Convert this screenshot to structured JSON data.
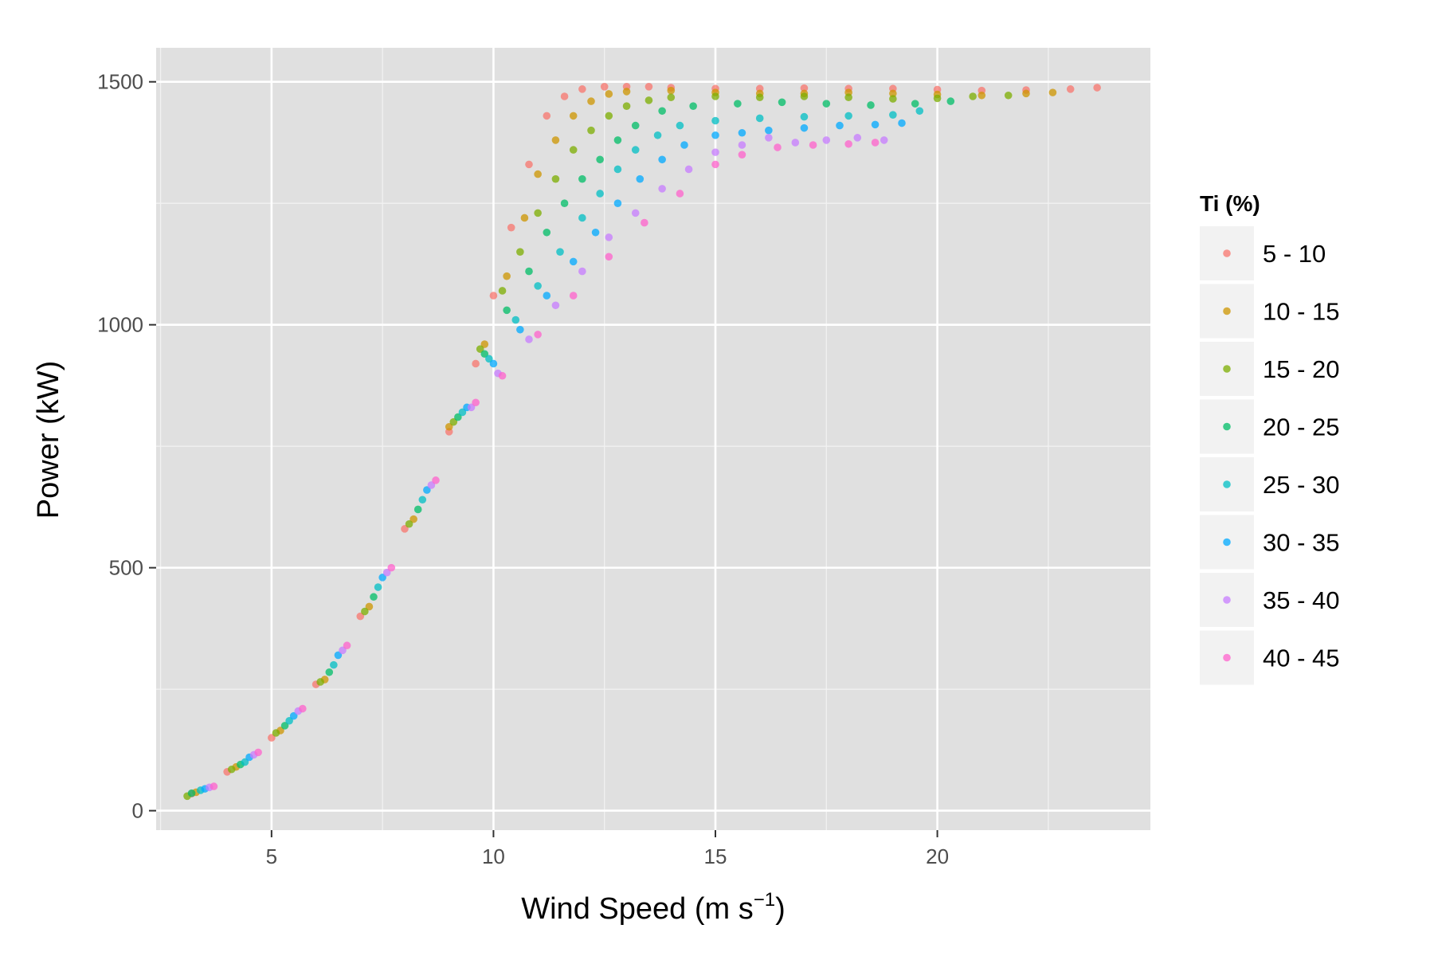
{
  "chart_data": {
    "type": "scatter",
    "title": "",
    "xlabel": "Wind Speed (m s",
    "xlabel_superscript": "−1",
    "xlabel_suffix": ")",
    "ylabel": "Power (kW)",
    "xlim": [
      2.4,
      24.8
    ],
    "ylim": [
      -40,
      1570
    ],
    "x_ticks": [
      5,
      10,
      15,
      20
    ],
    "y_ticks": [
      0,
      500,
      1000,
      1500
    ],
    "x_tick_labels": [
      "5",
      "10",
      "15",
      "20"
    ],
    "y_tick_labels": [
      "0",
      "500",
      "1000",
      "1500"
    ],
    "grid": true,
    "panel_background": "#e0e0e0",
    "grid_color": "#ffffff",
    "legend": {
      "title": "Ti (%)",
      "position": "right",
      "entries": [
        {
          "label": "5 - 10",
          "color": "#F8766D"
        },
        {
          "label": "10 - 15",
          "color": "#CD9600"
        },
        {
          "label": "15 - 20",
          "color": "#7CAE00"
        },
        {
          "label": "20 - 25",
          "color": "#00BE67"
        },
        {
          "label": "25 - 30",
          "color": "#00BFC4"
        },
        {
          "label": "30 - 35",
          "color": "#00A9FF"
        },
        {
          "label": "35 - 40",
          "color": "#C77CFF"
        },
        {
          "label": "40 - 45",
          "color": "#FF61CC"
        }
      ]
    },
    "series": [
      {
        "name": "5 - 10",
        "x": [
          3.2,
          4.0,
          5.0,
          6.0,
          7.0,
          8.0,
          9.0,
          9.6,
          10.0,
          10.4,
          10.8,
          11.2,
          11.6,
          12.0,
          12.5,
          13.0,
          13.5,
          14.0,
          15.0,
          16.0,
          17.0,
          18.0,
          19.0,
          20.0,
          21.0,
          22.0,
          23.0,
          23.6
        ],
        "y": [
          35,
          80,
          150,
          260,
          400,
          580,
          780,
          920,
          1060,
          1200,
          1330,
          1430,
          1470,
          1485,
          1490,
          1490,
          1490,
          1488,
          1486,
          1486,
          1487,
          1486,
          1486,
          1484,
          1482,
          1483,
          1485,
          1488
        ]
      },
      {
        "name": "10 - 15",
        "x": [
          3.3,
          4.2,
          5.2,
          6.2,
          7.2,
          8.2,
          9.0,
          9.8,
          10.3,
          10.7,
          11.0,
          11.4,
          11.8,
          12.2,
          12.6,
          13.0,
          14.0,
          15.0,
          16.0,
          17.0,
          18.0,
          19.0,
          20.0,
          21.0,
          22.0,
          22.6
        ],
        "y": [
          38,
          90,
          165,
          270,
          420,
          600,
          790,
          960,
          1100,
          1220,
          1310,
          1380,
          1430,
          1460,
          1475,
          1480,
          1482,
          1478,
          1476,
          1476,
          1478,
          1476,
          1474,
          1472,
          1476,
          1478
        ]
      },
      {
        "name": "15 - 20",
        "x": [
          3.1,
          4.1,
          5.1,
          6.1,
          7.1,
          8.1,
          9.1,
          9.7,
          10.2,
          10.6,
          11.0,
          11.4,
          11.8,
          12.2,
          12.6,
          13.0,
          13.5,
          14.0,
          15.0,
          16.0,
          17.0,
          18.0,
          19.0,
          20.0,
          20.8,
          21.6
        ],
        "y": [
          30,
          85,
          160,
          265,
          410,
          590,
          800,
          950,
          1070,
          1150,
          1230,
          1300,
          1360,
          1400,
          1430,
          1450,
          1462,
          1468,
          1470,
          1468,
          1470,
          1468,
          1465,
          1466,
          1470,
          1472
        ]
      },
      {
        "name": "20 - 25",
        "x": [
          3.2,
          4.3,
          5.3,
          6.3,
          7.3,
          8.3,
          9.2,
          9.8,
          10.3,
          10.8,
          11.2,
          11.6,
          12.0,
          12.4,
          12.8,
          13.2,
          13.8,
          14.5,
          15.5,
          16.5,
          17.5,
          18.5,
          19.5,
          20.3
        ],
        "y": [
          36,
          95,
          175,
          285,
          440,
          620,
          810,
          940,
          1030,
          1110,
          1190,
          1250,
          1300,
          1340,
          1380,
          1410,
          1440,
          1450,
          1455,
          1458,
          1455,
          1452,
          1455,
          1460
        ]
      },
      {
        "name": "25 - 30",
        "x": [
          3.4,
          4.4,
          5.4,
          6.4,
          7.4,
          8.4,
          9.3,
          9.9,
          10.5,
          11.0,
          11.5,
          12.0,
          12.4,
          12.8,
          13.2,
          13.7,
          14.2,
          15.0,
          16.0,
          17.0,
          18.0,
          19.0,
          19.6
        ],
        "y": [
          42,
          100,
          185,
          300,
          460,
          640,
          820,
          930,
          1010,
          1080,
          1150,
          1220,
          1270,
          1320,
          1360,
          1390,
          1410,
          1420,
          1425,
          1428,
          1430,
          1432,
          1440
        ]
      },
      {
        "name": "30 - 35",
        "x": [
          3.5,
          4.5,
          5.5,
          6.5,
          7.5,
          8.5,
          9.4,
          10.0,
          10.6,
          11.2,
          11.8,
          12.3,
          12.8,
          13.3,
          13.8,
          14.3,
          15.0,
          15.6,
          16.2,
          17.0,
          17.8,
          18.6,
          19.2
        ],
        "y": [
          45,
          110,
          195,
          320,
          480,
          660,
          830,
          920,
          990,
          1060,
          1130,
          1190,
          1250,
          1300,
          1340,
          1370,
          1390,
          1395,
          1400,
          1405,
          1410,
          1412,
          1415
        ]
      },
      {
        "name": "35 - 40",
        "x": [
          3.6,
          4.6,
          5.6,
          6.6,
          7.6,
          8.6,
          9.5,
          10.1,
          10.8,
          11.4,
          12.0,
          12.6,
          13.2,
          13.8,
          14.4,
          15.0,
          15.6,
          16.2,
          16.8,
          17.5,
          18.2,
          18.8
        ],
        "y": [
          48,
          115,
          205,
          330,
          490,
          670,
          830,
          900,
          970,
          1040,
          1110,
          1180,
          1230,
          1280,
          1320,
          1355,
          1370,
          1385,
          1375,
          1380,
          1385,
          1380
        ]
      },
      {
        "name": "40 - 45",
        "x": [
          3.7,
          4.7,
          5.7,
          6.7,
          7.7,
          8.7,
          9.6,
          10.2,
          11.0,
          11.8,
          12.6,
          13.4,
          14.2,
          15.0,
          15.6,
          16.4,
          17.2,
          18.0,
          18.6
        ],
        "y": [
          50,
          120,
          210,
          340,
          500,
          680,
          840,
          895,
          980,
          1060,
          1140,
          1210,
          1270,
          1330,
          1350,
          1365,
          1370,
          1372,
          1375
        ]
      }
    ]
  }
}
